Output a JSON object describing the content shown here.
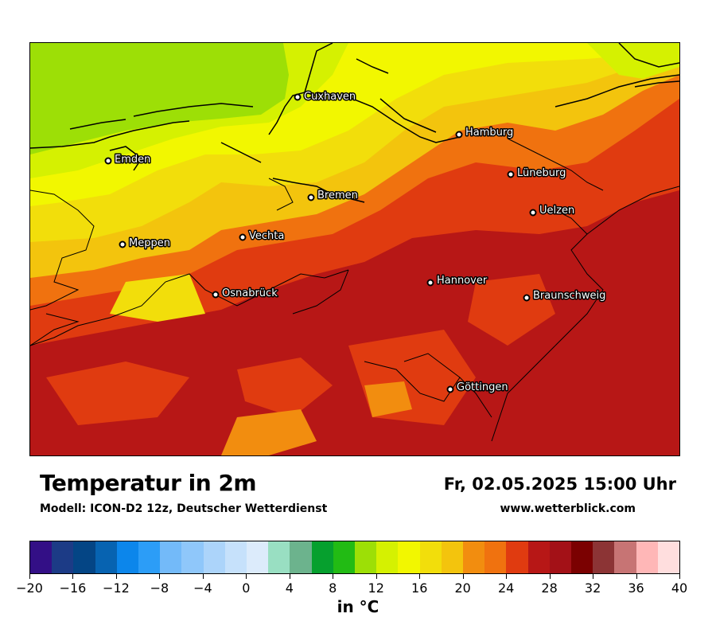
{
  "header": {
    "title": "Temperatur in 2m",
    "model": "Modell: ICON-D2 12z, Deutscher Wetterdienst",
    "datetime": "Fr, 02.05.2025 15:00 Uhr",
    "website": "www.wetterblick.com"
  },
  "map": {
    "cities": [
      "Cuxhaven",
      "Hamburg",
      "Emden",
      "Lüneburg",
      "Bremen",
      "Uelzen",
      "Vechta",
      "Meppen",
      "Hannover",
      "Osnabrück",
      "Braunschweig",
      "Göttingen"
    ]
  },
  "legend": {
    "unit": "in °C",
    "tick_labels": [
      "−20",
      "−16",
      "−12",
      "−8",
      "−4",
      "0",
      "4",
      "8",
      "12",
      "16",
      "20",
      "24",
      "28",
      "32",
      "36",
      "40"
    ],
    "min": -20,
    "max": 40,
    "step": 2,
    "colors": [
      "#330f86",
      "#1c3b86",
      "#044585",
      "#0763b1",
      "#0c86eb",
      "#2c9df7",
      "#73baf9",
      "#8fc7fa",
      "#acd4fa",
      "#c6e1fb",
      "#dcebfb",
      "#99dfc2",
      "#6cb38d",
      "#06a02e",
      "#22bb14",
      "#9ddf06",
      "#d5f101",
      "#f2f700",
      "#f2de0b",
      "#f3c40d",
      "#f28d0f",
      "#f0720f",
      "#e03b10",
      "#b71716",
      "#a31117",
      "#7b0101",
      "#8c3435",
      "#c77474",
      "#ffb7b7",
      "#ffdede"
    ]
  }
}
